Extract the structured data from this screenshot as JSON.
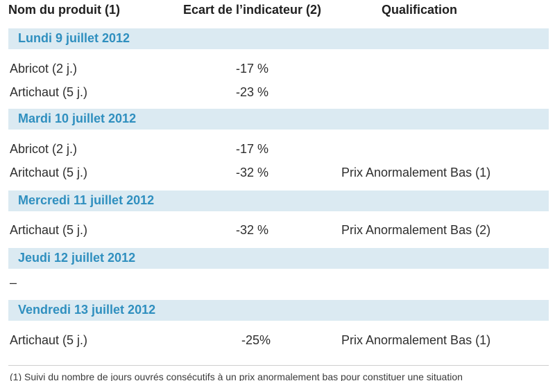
{
  "header": {
    "col1": "Nom du produit (1)",
    "col2": "Ecart de l’indicateur (2)",
    "col3": "Qualification"
  },
  "days": [
    {
      "label": "Lundi 9 juillet 2012",
      "rows": [
        {
          "product": "Abricot (2 j.)",
          "ecart": "-17 %",
          "qualification": ""
        },
        {
          "product": "Artichaut (5 j.)",
          "ecart": "-23 %",
          "qualification": ""
        }
      ]
    },
    {
      "label": "Mardi 10 juillet 2012",
      "rows": [
        {
          "product": "Abricot (2 j.)",
          "ecart": "-17 %",
          "qualification": ""
        },
        {
          "product": "Aritchaut (5 j.)",
          "ecart": "-32 %",
          "qualification": "Prix Anormalement Bas (1)"
        }
      ]
    },
    {
      "label": "Mercredi 11 juillet 2012",
      "rows": [
        {
          "product": "Artichaut (5 j.)",
          "ecart": "-32 %",
          "qualification": "Prix Anormalement Bas (2)"
        }
      ]
    },
    {
      "label": "Jeudi 12 juillet 2012",
      "rows": [
        {
          "product": "–",
          "ecart": "",
          "qualification": ""
        }
      ]
    },
    {
      "label": "Vendredi 13 juillet 2012",
      "rows": [
        {
          "product": "Artichaut (5 j.)",
          "ecart": "-25%",
          "qualification": "Prix Anormalement Bas (1)"
        }
      ]
    }
  ],
  "footnote": "(1) Suivi du nombre de jours ouvrés consécutifs à un prix anormalement bas pour constituer une situation",
  "colors": {
    "band_background": "#dbeaf2",
    "band_text": "#2f8fbf"
  }
}
